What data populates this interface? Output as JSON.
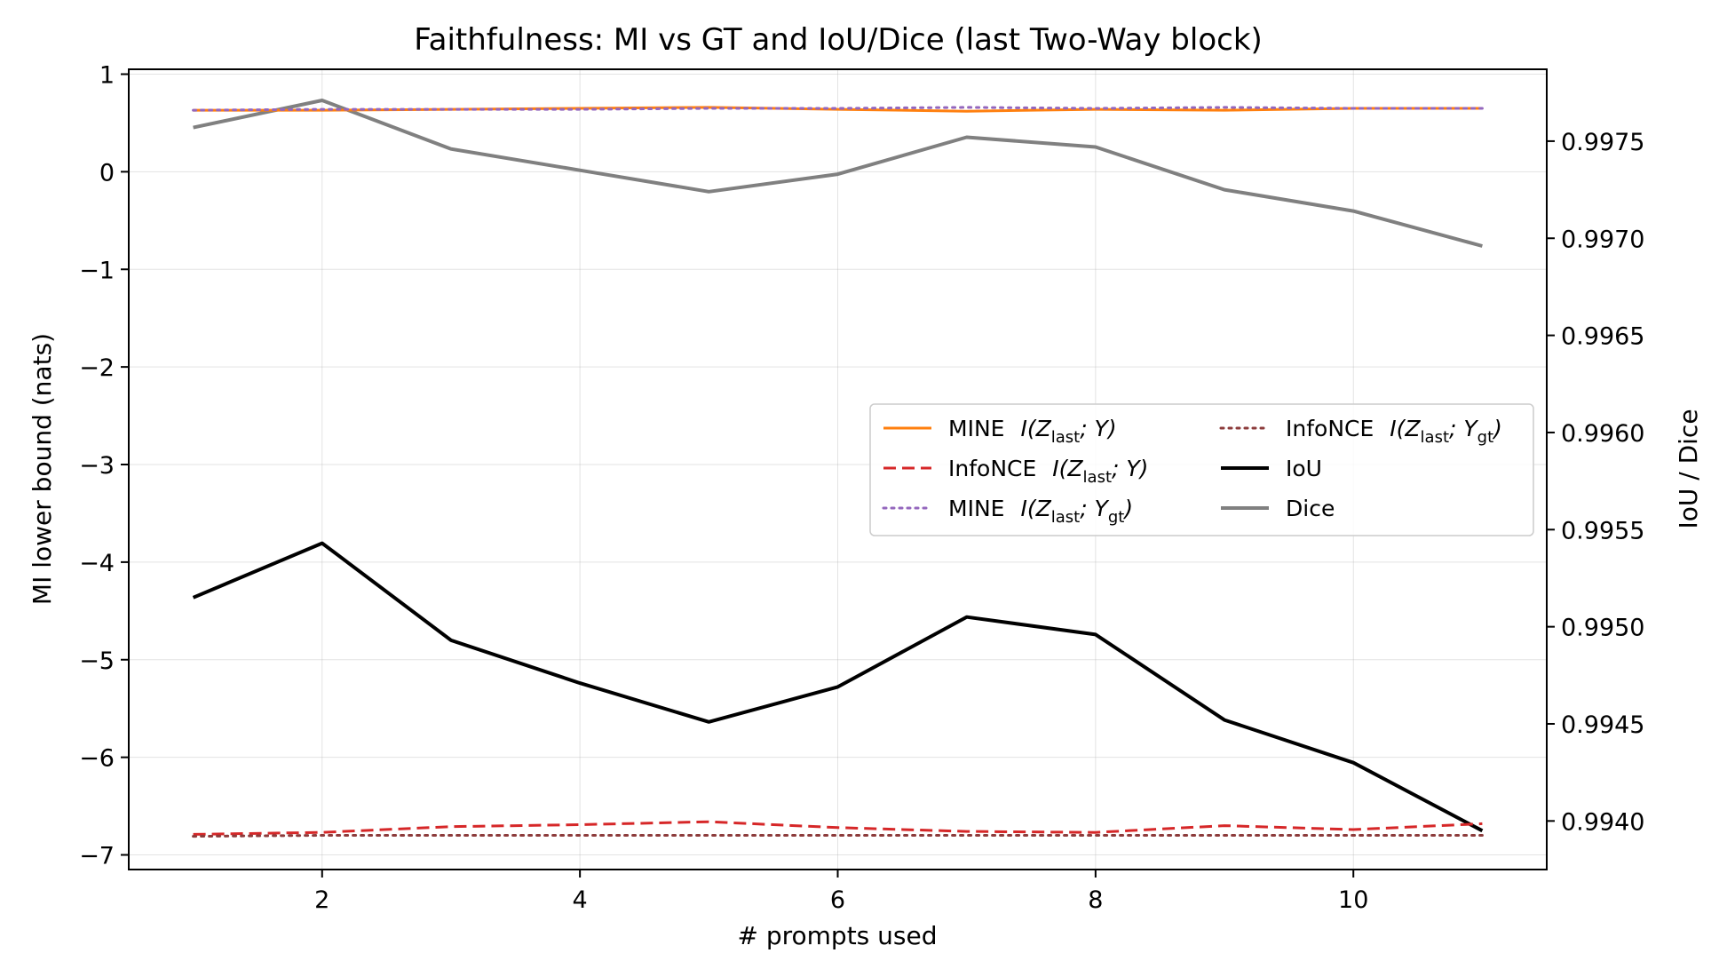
{
  "chart_data": {
    "type": "line",
    "title": "Faithfulness: MI vs GT and IoU/Dice (last Two-Way block)",
    "xlabel": "# prompts used",
    "ylabel": "MI lower bound (nats)",
    "ylabel_right": "IoU / Dice",
    "xlim": [
      0.5,
      11.5
    ],
    "ylim": [
      -7.15,
      1.05
    ],
    "ylim_right": [
      0.99375,
      0.99787
    ],
    "x_ticks": [
      "2",
      "4",
      "6",
      "8",
      "10"
    ],
    "y_ticks": [
      "1",
      "0",
      "−1",
      "−2",
      "−3",
      "−4",
      "−5",
      "−6",
      "−7"
    ],
    "y_ticks_right": [
      "0.9975",
      "0.9970",
      "0.9965",
      "0.9960",
      "0.9955",
      "0.9950",
      "0.9945",
      "0.9940"
    ],
    "grid": true,
    "legend_position": "center-right",
    "x": [
      1,
      2,
      3,
      4,
      5,
      6,
      7,
      8,
      9,
      10,
      11
    ],
    "series": [
      {
        "name": "MINE",
        "math": {
          "base": "I(Z",
          "sub1": "last",
          "mid": "; Y",
          "sub2": "",
          "end": ")"
        },
        "axis": "left",
        "color": "#ff7f0e",
        "dash": "solid",
        "values": [
          0.63,
          0.63,
          0.64,
          0.65,
          0.66,
          0.64,
          0.62,
          0.64,
          0.63,
          0.65,
          0.65
        ]
      },
      {
        "name": "InfoNCE",
        "math": {
          "base": "I(Z",
          "sub1": "last",
          "mid": "; Y",
          "sub2": "",
          "end": ")"
        },
        "axis": "left",
        "color": "#d62728",
        "dash": "dashed",
        "values": [
          -6.79,
          -6.77,
          -6.71,
          -6.69,
          -6.66,
          -6.72,
          -6.76,
          -6.77,
          -6.7,
          -6.74,
          -6.68
        ]
      },
      {
        "name": "MINE",
        "math": {
          "base": "I(Z",
          "sub1": "last",
          "mid": "; Y",
          "sub2": "gt",
          "end": ")"
        },
        "axis": "left",
        "color": "#9467bd",
        "dash": "dotted",
        "values": [
          0.63,
          0.64,
          0.64,
          0.64,
          0.65,
          0.65,
          0.66,
          0.65,
          0.66,
          0.65,
          0.65
        ]
      },
      {
        "name": "InfoNCE",
        "math": {
          "base": "I(Z",
          "sub1": "last",
          "mid": "; Y",
          "sub2": "gt",
          "end": ")"
        },
        "axis": "left",
        "color": "#8c3b3b",
        "dash": "dotted",
        "values": [
          -6.81,
          -6.8,
          -6.8,
          -6.8,
          -6.8,
          -6.8,
          -6.8,
          -6.8,
          -6.8,
          -6.8,
          -6.8
        ]
      },
      {
        "name": "IoU",
        "axis": "right",
        "color": "#000000",
        "dash": "solid",
        "values": [
          0.99515,
          0.99543,
          0.99493,
          0.99471,
          0.99451,
          0.99469,
          0.99505,
          0.99496,
          0.99452,
          0.9943,
          0.99395
        ]
      },
      {
        "name": "Dice",
        "axis": "right",
        "color": "#808080",
        "dash": "solid",
        "values": [
          0.99757,
          0.99771,
          0.99746,
          0.99735,
          0.99724,
          0.99733,
          0.99752,
          0.99747,
          0.99725,
          0.99714,
          0.99696
        ]
      }
    ]
  }
}
